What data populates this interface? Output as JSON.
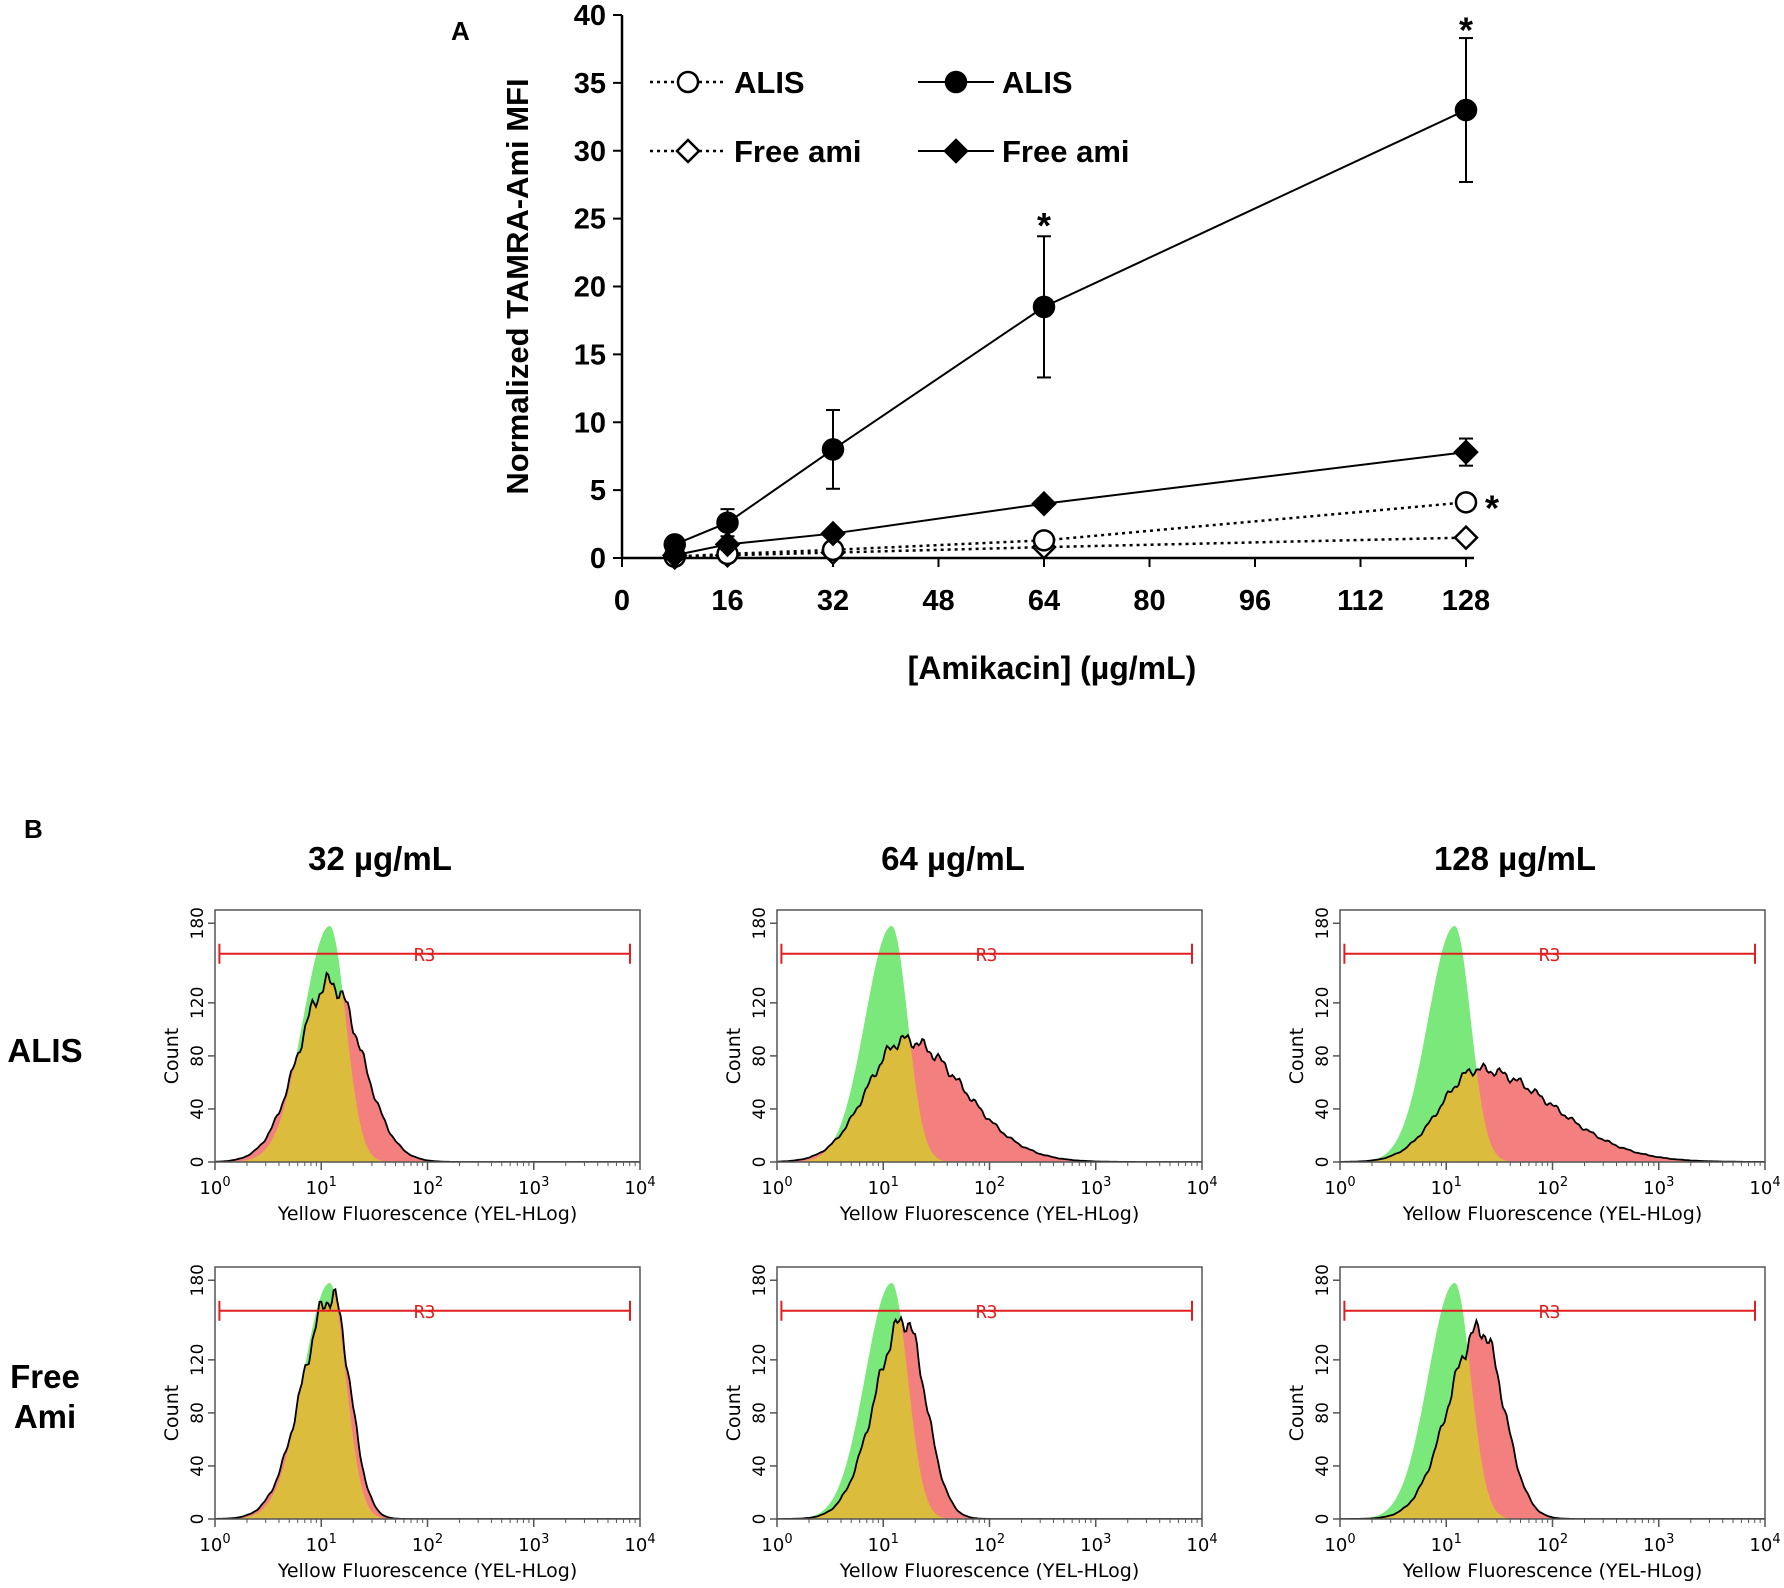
{
  "panel_labels": {
    "a": "A",
    "b": "B"
  },
  "chart_data": [
    {
      "type": "line",
      "panel": "A",
      "title": "",
      "xlabel": "[Amikacin] (µg/mL)",
      "ylabel": "Normalized TAMRA-Ami MFI",
      "xlim": [
        0,
        128
      ],
      "ylim": [
        0,
        40
      ],
      "x_ticks": [
        "0",
        "16",
        "32",
        "48",
        "64",
        "80",
        "96",
        "112",
        "128"
      ],
      "y_ticks": [
        "0",
        "5",
        "10",
        "15",
        "20",
        "25",
        "30",
        "35",
        "40"
      ],
      "legend": [
        {
          "label": "ALIS",
          "series": "alis_open"
        },
        {
          "label": "ALIS",
          "series": "alis_filled"
        },
        {
          "label": "Free ami",
          "series": "free_open"
        },
        {
          "label": "Free ami",
          "series": "free_filled"
        }
      ],
      "series": [
        {
          "id": "alis_filled",
          "name": "ALIS",
          "marker": "circle",
          "filled": true,
          "dashed": false,
          "x": [
            8,
            16,
            32,
            64,
            128
          ],
          "y": [
            1.0,
            2.6,
            8.0,
            18.5,
            33.0
          ],
          "err": [
            0,
            1.0,
            2.9,
            5.2,
            5.3
          ]
        },
        {
          "id": "free_filled",
          "name": "Free ami",
          "marker": "diamond",
          "filled": true,
          "dashed": false,
          "x": [
            8,
            16,
            32,
            64,
            128
          ],
          "y": [
            0.2,
            1.0,
            1.8,
            4.0,
            7.8
          ],
          "err": [
            0,
            0,
            0,
            0,
            1.0
          ]
        },
        {
          "id": "alis_open",
          "name": "ALIS",
          "marker": "circle",
          "filled": false,
          "dashed": true,
          "x": [
            8,
            16,
            32,
            64,
            128
          ],
          "y": [
            0.1,
            0.3,
            0.6,
            1.3,
            4.1
          ],
          "err": [
            0,
            0,
            0,
            0,
            0
          ]
        },
        {
          "id": "free_open",
          "name": "Free ami",
          "marker": "diamond",
          "filled": false,
          "dashed": true,
          "x": [
            8,
            16,
            32,
            64,
            128
          ],
          "y": [
            0.05,
            0.2,
            0.4,
            0.8,
            1.5
          ],
          "err": [
            0,
            0,
            0,
            0,
            0
          ]
        }
      ],
      "annotations": [
        {
          "text": "*",
          "x": 64,
          "y": 25.2
        },
        {
          "text": "*",
          "x": 128,
          "y": 39.6
        },
        {
          "text": "*",
          "x": 128,
          "y": 4.1
        }
      ]
    },
    {
      "type": "area",
      "panel": "B",
      "columns": [
        "32 µg/mL",
        "64 µg/mL",
        "128 µg/mL"
      ],
      "rows": [
        "ALIS",
        "Free Ami"
      ],
      "xlabel": "Yellow Fluorescence (YEL-HLog)",
      "ylabel": "Count",
      "x_ticks": [
        {
          "base": "10",
          "exp": "0"
        },
        {
          "base": "10",
          "exp": "1"
        },
        {
          "base": "10",
          "exp": "2"
        },
        {
          "base": "10",
          "exp": "3"
        },
        {
          "base": "10",
          "exp": "4"
        }
      ],
      "y_ticks": [
        "0",
        "40",
        "80",
        "120",
        "180"
      ],
      "x_scale": "log10",
      "xlim": [
        1,
        10000
      ],
      "ylim": [
        0,
        190
      ],
      "gate_label": "R3",
      "gate_range": [
        1.1,
        10000
      ],
      "gate_count": 157,
      "control_color": "#7be87b",
      "sample_color": "#f47f7f",
      "overlap_color": "#dcbc3c",
      "control": {
        "peak_decade": 1.08,
        "peak_count": 178,
        "width_low": 0.25,
        "width_high": 0.15
      },
      "histograms": [
        {
          "row": "ALIS",
          "column": "32 µg/mL",
          "peak_decade": 1.08,
          "peak_count": 135,
          "width_low": 0.3,
          "width_high": 0.3
        },
        {
          "row": "ALIS",
          "column": "64 µg/mL",
          "peak_decade": 1.2,
          "peak_count": 92,
          "width_low": 0.35,
          "width_high": 0.55
        },
        {
          "row": "ALIS",
          "column": "128 µg/mL",
          "peak_decade": 1.3,
          "peak_count": 70,
          "width_low": 0.35,
          "width_high": 0.7
        },
        {
          "row": "Free Ami",
          "column": "32 µg/mL",
          "peak_decade": 1.1,
          "peak_count": 168,
          "width_low": 0.28,
          "width_high": 0.17
        },
        {
          "row": "Free Ami",
          "column": "64 µg/mL",
          "peak_decade": 1.2,
          "peak_count": 150,
          "width_low": 0.28,
          "width_high": 0.2
        },
        {
          "row": "Free Ami",
          "column": "128 µg/mL",
          "peak_decade": 1.32,
          "peak_count": 143,
          "width_low": 0.3,
          "width_high": 0.22
        }
      ]
    }
  ]
}
